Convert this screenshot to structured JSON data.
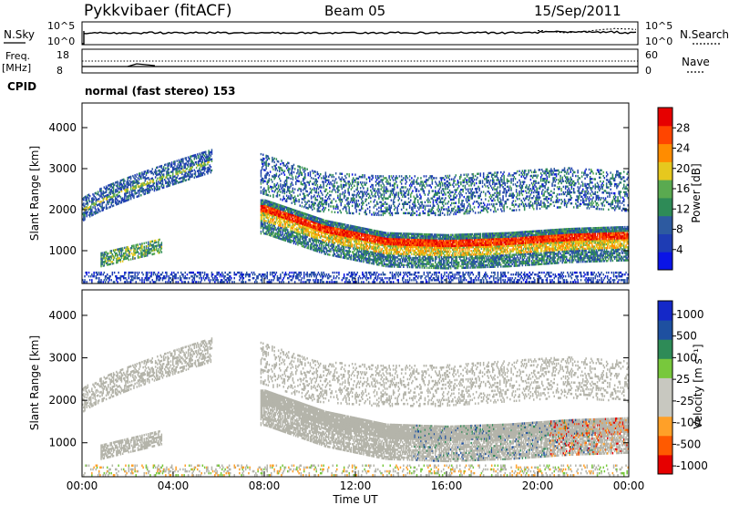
{
  "header": {
    "station": "Pykkvibaer (fitACF)",
    "beam": "Beam 05",
    "date": "15/Sep/2011"
  },
  "status_panels": {
    "nsky_label": "N.Sky",
    "nsky_ticks": [
      "10^5",
      "10^0"
    ],
    "nsearch_label": "N.Search",
    "nsearch_ticks": [
      "10^5",
      "10^0"
    ],
    "freq_label_1": "Freq.",
    "freq_label_2": "[MHz]",
    "freq_ticks": [
      "18",
      "8"
    ],
    "nave_label": "Nave",
    "nave_ticks": [
      "60",
      "0"
    ],
    "cpid_label": "CPID",
    "cpid_text": "normal (fast stereo) 153"
  },
  "colors": {
    "power_scale": [
      "#0a14e6",
      "#1e3cb4",
      "#2d5aa0",
      "#2e8b57",
      "#5aaa50",
      "#e6c81e",
      "#ff8c00",
      "#ff4500",
      "#e60000"
    ],
    "velocity_scale": [
      "#e60000",
      "#ff5a00",
      "#ffa028",
      "#c8c8c0",
      "#c8c8c0",
      "#78c83c",
      "#2e8b57",
      "#1e50a0",
      "#1428c8"
    ],
    "velocity_ground": "#b4b4aa"
  },
  "chart_data": [
    {
      "type": "heatmap",
      "panel": "power",
      "ylabel": "Slant Range [km]",
      "xlabel": "",
      "xlim_hours": [
        0,
        24
      ],
      "ylim": [
        200,
        4600
      ],
      "yticks": [
        "1000",
        "2000",
        "3000",
        "4000"
      ],
      "colorbar_label": "Power [dB]",
      "colorbar_ticks": [
        "4",
        "8",
        "12",
        "16",
        "20",
        "24",
        "28"
      ],
      "colorbar_range": [
        0,
        32
      ],
      "features": [
        {
          "name": "early arc",
          "t_start": 0.0,
          "t_end": 5.7,
          "range_start_km": 1950,
          "range_end_km": 3150,
          "dB": 8
        },
        {
          "name": "main band",
          "t_start": 8.0,
          "t_end": 24.0,
          "range_km": [
            2000,
            1500,
            1200,
            1150,
            1200,
            1300,
            1350
          ],
          "dB": 26
        },
        {
          "name": "upper band",
          "t_start": 7.5,
          "t_end": 24.0,
          "range_km": [
            2700,
            2200,
            2100,
            2100,
            2200,
            2300,
            2200
          ],
          "dB": 7
        },
        {
          "name": "near range patch",
          "t_start": 0.8,
          "t_end": 3.5,
          "range_km": [
            800,
            1200
          ],
          "dB": 16
        },
        {
          "name": "ground clutter",
          "t_start": 0.0,
          "t_end": 24.0,
          "range_km": [
            200,
            450
          ],
          "dB": 5
        }
      ]
    },
    {
      "type": "heatmap",
      "panel": "velocity",
      "ylabel": "Slant Range [km]",
      "xlabel": "Time UT",
      "xlim_hours": [
        0,
        24
      ],
      "ylim": [
        200,
        4600
      ],
      "xticks": [
        "00:00",
        "04:00",
        "08:00",
        "12:00",
        "16:00",
        "20:00",
        "00:00"
      ],
      "yticks": [
        "1000",
        "2000",
        "3000",
        "4000"
      ],
      "colorbar_label": "Velocity [m s⁻¹]",
      "colorbar_ticks": [
        "1000",
        "500",
        "100",
        "25",
        "-25",
        "-100",
        "-500",
        "-1000"
      ],
      "features": [
        {
          "name": "ground scatter band",
          "t_start": 8.0,
          "t_end": 24.0,
          "velocity_ms": 0
        },
        {
          "name": "positive velocity patches",
          "t_start": 14.5,
          "t_end": 22.5,
          "velocity_ms": 300
        },
        {
          "name": "negative velocity patches",
          "t_start": 20.5,
          "t_end": 24.0,
          "velocity_ms": -400
        }
      ]
    }
  ]
}
